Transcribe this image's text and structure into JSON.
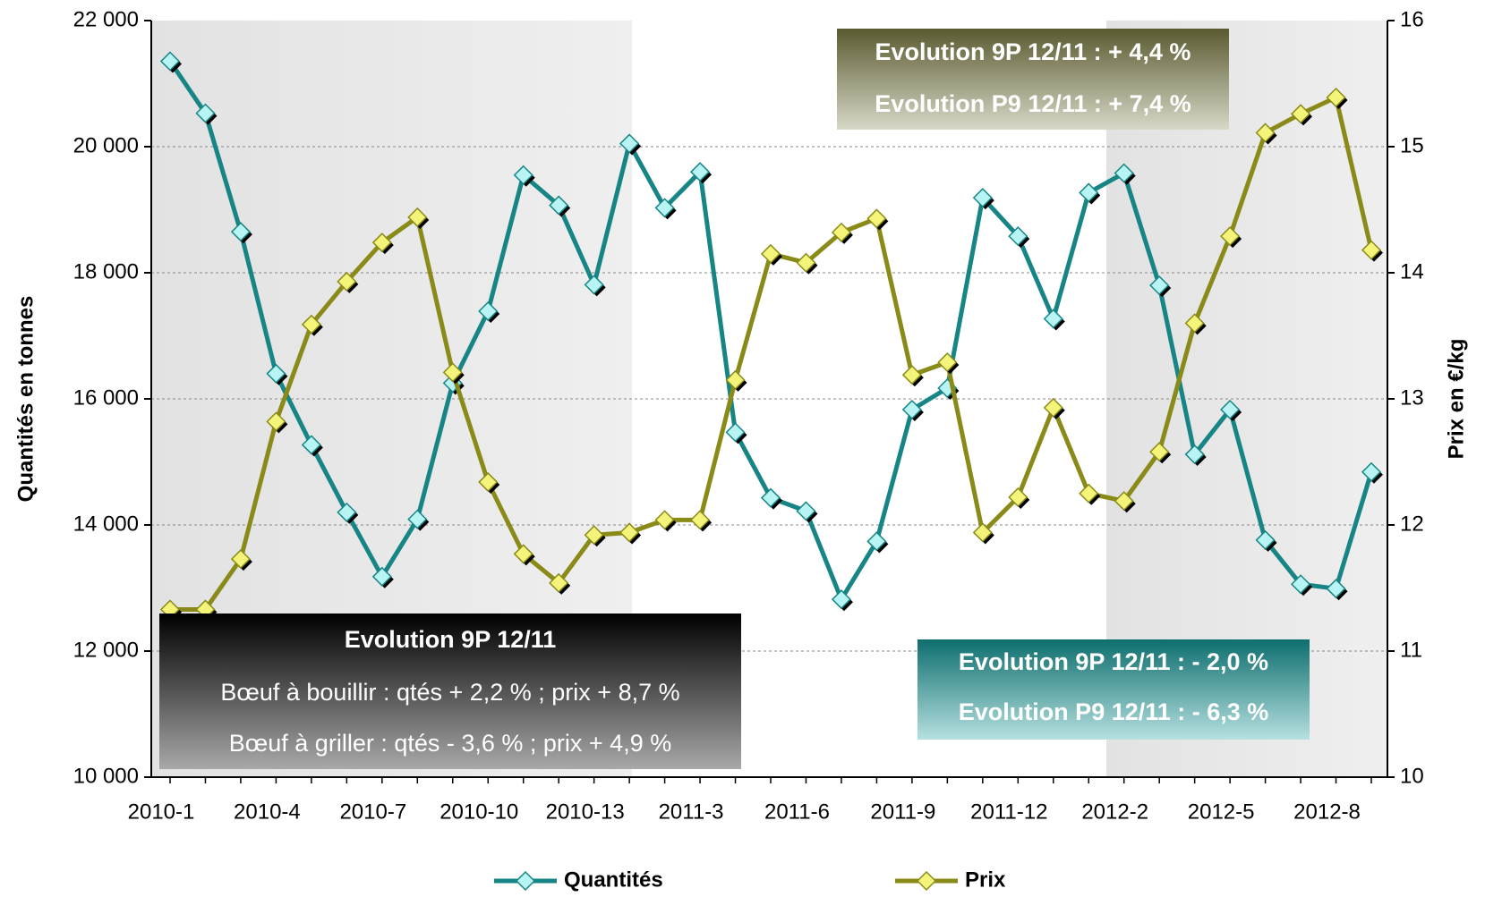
{
  "chart_data": {
    "type": "line",
    "categories": [
      "2010-1",
      null,
      null,
      "2010-4",
      null,
      null,
      "2010-7",
      null,
      null,
      "2010-10",
      null,
      null,
      "2010-13",
      null,
      null,
      "2011-3",
      null,
      null,
      "2011-6",
      null,
      null,
      "2011-9",
      null,
      null,
      "2011-12",
      null,
      null,
      "2012-2",
      null,
      null,
      "2012-5",
      null,
      null,
      "2012-8",
      null
    ],
    "series": [
      {
        "name": "Quantités",
        "color": "#178585",
        "marker_color": "#b8f4f4",
        "axis": "y",
        "values": [
          21355,
          20530,
          18650,
          16400,
          15270,
          14200,
          13180,
          14090,
          16250,
          17390,
          19550,
          19070,
          17810,
          20050,
          19030,
          19600,
          15470,
          14430,
          14220,
          12820,
          13740,
          15830,
          16170,
          19190,
          18580,
          17270,
          19270,
          19580,
          17800,
          15120,
          15830,
          13760,
          13060,
          12990,
          14840
        ]
      },
      {
        "name": "Prix",
        "color": "#8a8a18",
        "marker_color": "#f4f47a",
        "axis": "y2",
        "values": [
          11.33,
          11.33,
          11.73,
          12.82,
          13.59,
          13.93,
          14.24,
          14.44,
          13.21,
          12.34,
          11.77,
          11.54,
          11.92,
          11.94,
          12.04,
          12.04,
          13.15,
          14.15,
          14.08,
          14.32,
          14.43,
          13.19,
          13.29,
          11.94,
          12.22,
          12.93,
          12.25,
          12.19,
          12.58,
          13.6,
          14.29,
          15.11,
          15.26,
          15.39,
          14.18
        ]
      }
    ],
    "ylabel": "Quantités en tonnes",
    "y2label": "Prix en €/kg",
    "ylim": [
      10000,
      22000
    ],
    "yticks": [
      {
        "value": 10000,
        "label": "10 000"
      },
      {
        "value": 12000,
        "label": "12 000"
      },
      {
        "value": 14000,
        "label": "14 000"
      },
      {
        "value": 16000,
        "label": "16 000"
      },
      {
        "value": 18000,
        "label": "18 000"
      },
      {
        "value": 20000,
        "label": "20 000"
      },
      {
        "value": 22000,
        "label": "22 000"
      }
    ],
    "y2lim": [
      10,
      16
    ],
    "y2ticks": [
      10,
      11,
      12,
      13,
      14,
      15,
      16
    ],
    "grid": true,
    "legend": "bottom",
    "annotations": {
      "summary": {
        "title": "Evolution 9P 12/11",
        "lines": [
          "Bœuf à bouillir : qtés + 2,2 % ; prix + 8,7 %",
          "Bœuf à griller : qtés - 3,6 % ; prix + 4,9 %"
        ]
      },
      "prix": [
        "Evolution 9P 12/11 : + 4,4 %",
        "Evolution P9 12/11 : + 7,4 %"
      ],
      "quantites": [
        "Evolution 9P 12/11 : - 2,0 %",
        "Evolution P9 12/11 : - 6,3 %"
      ]
    }
  }
}
